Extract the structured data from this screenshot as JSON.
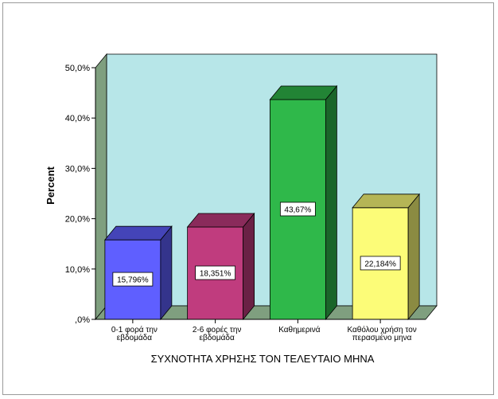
{
  "chart_data": {
    "type": "bar",
    "title": "",
    "xlabel": "ΣΥΧΝΟΤΗΤΑ ΧΡΗΣΗΣ ΤΟΝ ΤΕΛΕΥΤΑΙΟ ΜΗΝΑ",
    "ylabel": "Percent",
    "ylim": [
      0,
      50
    ],
    "yticks": [
      0,
      10,
      20,
      30,
      40,
      50
    ],
    "ytick_labels": [
      ",0%",
      "10,0%",
      "20,0%",
      "30,0%",
      "40,0%",
      "50,0%"
    ],
    "grid": false,
    "legend": "none",
    "style": "3d",
    "categories": [
      [
        "0-1 φορά την",
        "εβδομάδα"
      ],
      [
        "2-6 φορές την",
        "εβδομάδα"
      ],
      [
        "Καθημερινά"
      ],
      [
        "Καθόλου χρήση τον",
        "περασμένο μηνα"
      ]
    ],
    "values": [
      15.796,
      18.351,
      43.67,
      22.184
    ],
    "data_labels": [
      "15,796%",
      "18,351%",
      "43,67%",
      "22,184%"
    ],
    "bar_colors": [
      "#5f5fff",
      "#c03c7e",
      "#2fb84a",
      "#fcfc78"
    ],
    "wall_color": "#b7e6e8",
    "side_wall_color": "#7f9f7f",
    "floor_color": "#7f9f7f"
  }
}
